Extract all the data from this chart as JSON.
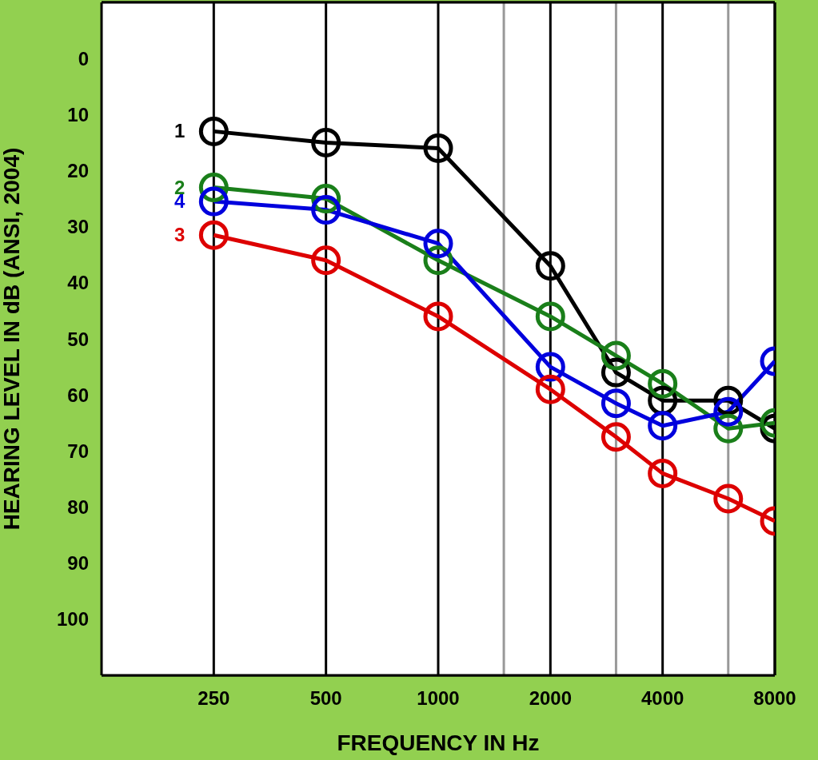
{
  "chart_data": {
    "type": "line",
    "xlabel": "FREQUENCY IN Hz",
    "ylabel": "HEARING LEVEL IN dB (ANSI, 2004)",
    "x": [
      250,
      500,
      1000,
      2000,
      3000,
      4000,
      6000,
      8000
    ],
    "series": [
      {
        "name": "1",
        "color": "#000000",
        "values": [
          13,
          15,
          16,
          37,
          56,
          61,
          61,
          66
        ]
      },
      {
        "name": "2",
        "color": "#1a7f1a",
        "values": [
          23,
          25,
          36,
          46,
          53,
          58,
          66,
          65
        ]
      },
      {
        "name": "4",
        "color": "#0000dd",
        "values": [
          25.5,
          27,
          33,
          55,
          61.5,
          65.5,
          63,
          54
        ]
      },
      {
        "name": "3",
        "color": "#dd0000",
        "values": [
          31.5,
          36,
          46,
          59,
          67.5,
          74,
          78.5,
          82.5
        ]
      }
    ],
    "log": "x",
    "xlim": [
      125,
      8000
    ],
    "xticks": [
      250,
      500,
      1000,
      {
        "value": 1500,
        "label": null
      },
      2000,
      {
        "value": 3000,
        "label": null
      },
      4000,
      {
        "value": 6000,
        "label": null
      },
      8000
    ],
    "ylim": [
      110,
      -10
    ],
    "yticks": [
      0,
      10,
      20,
      30,
      40,
      50,
      60,
      70,
      80,
      90,
      100
    ],
    "grid": true,
    "marker": "circle",
    "line_style": "solid"
  }
}
